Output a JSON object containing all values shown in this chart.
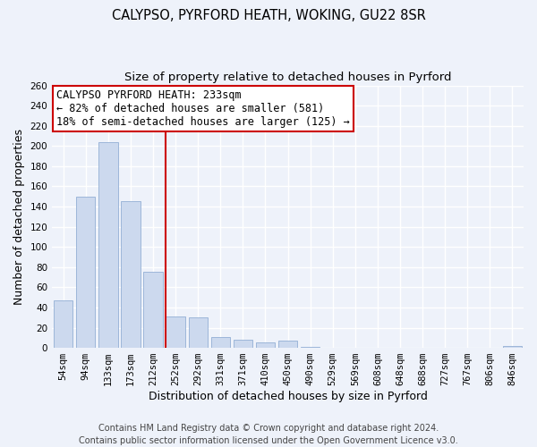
{
  "title": "CALYPSO, PYRFORD HEATH, WOKING, GU22 8SR",
  "subtitle": "Size of property relative to detached houses in Pyrford",
  "xlabel": "Distribution of detached houses by size in Pyrford",
  "ylabel": "Number of detached properties",
  "categories": [
    "54sqm",
    "94sqm",
    "133sqm",
    "173sqm",
    "212sqm",
    "252sqm",
    "292sqm",
    "331sqm",
    "371sqm",
    "410sqm",
    "450sqm",
    "490sqm",
    "529sqm",
    "569sqm",
    "608sqm",
    "648sqm",
    "688sqm",
    "727sqm",
    "767sqm",
    "806sqm",
    "846sqm"
  ],
  "values": [
    47,
    150,
    204,
    145,
    75,
    31,
    30,
    11,
    8,
    5,
    7,
    1,
    0,
    0,
    0,
    0,
    0,
    0,
    0,
    0,
    2
  ],
  "bar_color": "#ccd9ee",
  "bar_edge_color": "#92afd4",
  "vline_x": 5.0,
  "vline_color": "#cc0000",
  "annotation_line1": "CALYPSO PYRFORD HEATH: 233sqm",
  "annotation_line2": "← 82% of detached houses are smaller (581)",
  "annotation_line3": "18% of semi-detached houses are larger (125) →",
  "annotation_box_color": "#ffffff",
  "annotation_box_edge": "#cc0000",
  "ylim": [
    0,
    260
  ],
  "yticks": [
    0,
    20,
    40,
    60,
    80,
    100,
    120,
    140,
    160,
    180,
    200,
    220,
    240,
    260
  ],
  "footer": "Contains HM Land Registry data © Crown copyright and database right 2024.\nContains public sector information licensed under the Open Government Licence v3.0.",
  "background_color": "#eef2fa",
  "plot_background": "#eef2fa",
  "grid_color": "#ffffff",
  "title_fontsize": 10.5,
  "subtitle_fontsize": 9.5,
  "axis_label_fontsize": 9,
  "tick_fontsize": 7.5,
  "annotation_fontsize": 8.5,
  "footer_fontsize": 7
}
